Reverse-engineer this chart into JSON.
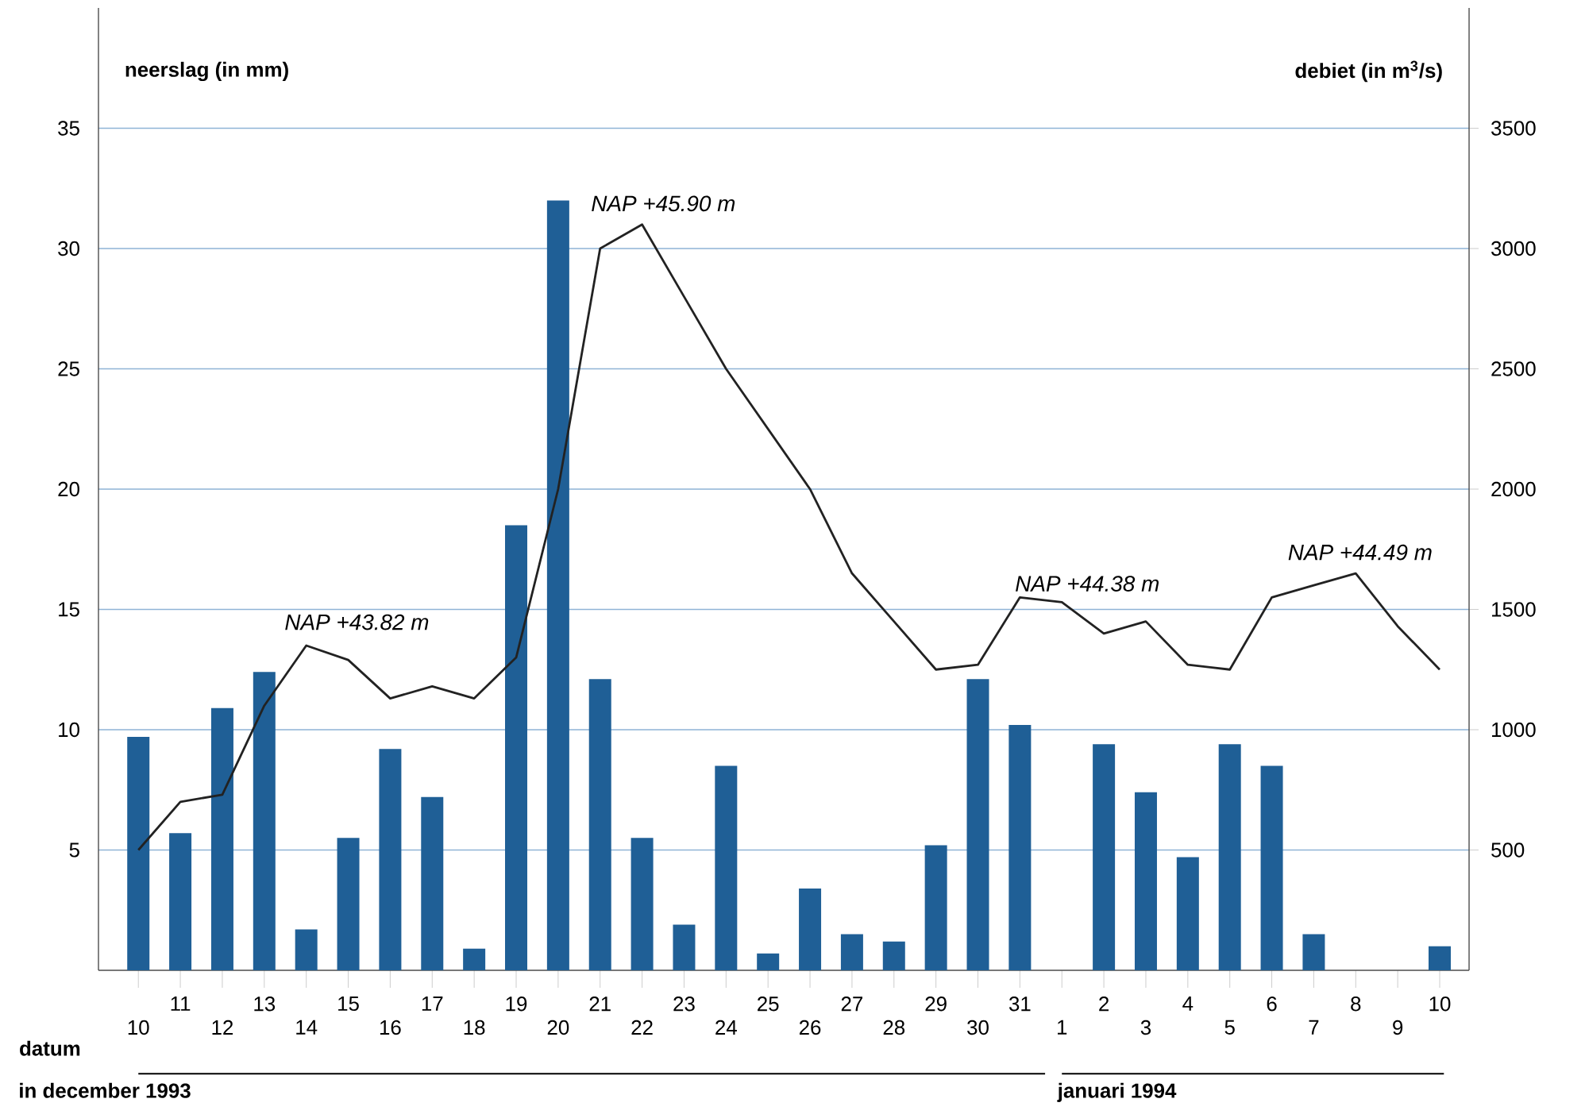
{
  "chart_data": {
    "type": "bar",
    "categories": [
      "10",
      "11",
      "12",
      "13",
      "14",
      "15",
      "16",
      "17",
      "18",
      "19",
      "20",
      "21",
      "22",
      "23",
      "24",
      "25",
      "26",
      "27",
      "28",
      "29",
      "30",
      "31",
      "1",
      "2",
      "3",
      "4",
      "5",
      "6",
      "7",
      "8",
      "9",
      "10"
    ],
    "xlabel": "datum",
    "ylabel": "neerslag (in mm)",
    "y2label": "debiet (in m$^{3}$/s)",
    "ylim": [
      0,
      40
    ],
    "yticks": [
      5,
      10,
      15,
      20,
      25,
      30,
      35
    ],
    "y2lim": [
      0,
      4000
    ],
    "y2ticks": [
      500,
      1000,
      1500,
      2000,
      2500,
      3000,
      3500
    ],
    "grid": "y",
    "series": [
      {
        "color": "#1f5f96",
        "values": [
          9.7,
          5.7,
          10.9,
          12.4,
          1.7,
          5.5,
          9.2,
          7.2,
          0.9,
          18.5,
          32,
          12.1,
          5.5,
          1.9,
          8.5,
          0.7,
          3.4,
          1.5,
          1.2,
          5.2,
          12.1,
          10.2,
          null,
          9.4,
          7.4,
          4.7,
          9.4,
          8.5,
          1.5,
          null,
          null,
          1.0
        ]
      },
      {
        "type": "line",
        "axis": "y2",
        "color": "#222222",
        "values": [
          500,
          700,
          730,
          1100,
          1350,
          1290,
          1130,
          1180,
          1130,
          1300,
          2000,
          3000,
          3100,
          2800,
          2500,
          2250,
          2000,
          1650,
          1450,
          1250,
          1270,
          1550,
          1530,
          1400,
          1450,
          1270,
          1250,
          1550,
          1600,
          1650,
          1430,
          1250
        ]
      }
    ],
    "annotations": [
      "NAP +43.82 m",
      "NAP +45.90 m",
      "NAP +44.38 m",
      "NAP +44.49 m",
      "in december 1993",
      "januari 1994"
    ]
  }
}
